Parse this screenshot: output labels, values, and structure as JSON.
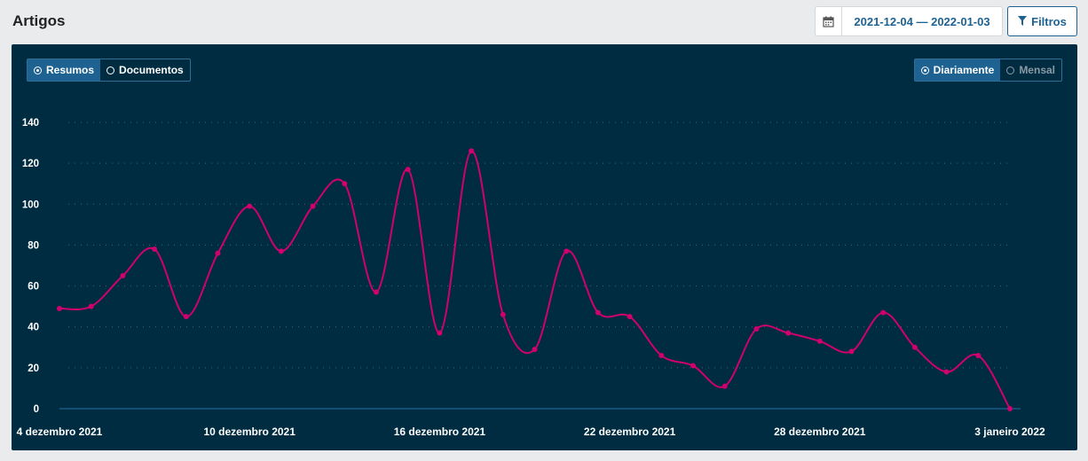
{
  "header": {
    "title": "Artigos",
    "date_range": "2021-12-04 — 2022-01-03",
    "filter_label": "Filtros",
    "calendar_icon": "calendar-icon",
    "filter_icon": "filter-icon"
  },
  "toggles": {
    "metric": [
      {
        "label": "Resumos",
        "active": true
      },
      {
        "label": "Documentos",
        "active": false
      }
    ],
    "period": [
      {
        "label": "Diariamente",
        "active": true
      },
      {
        "label": "Mensal",
        "active": false
      }
    ]
  },
  "colors": {
    "panel_bg": "#002c41",
    "line": "#d1006f",
    "accent": "#1e6292"
  },
  "chart_data": {
    "type": "line",
    "title": "",
    "xlabel": "",
    "ylabel": "",
    "ylim": [
      0,
      140
    ],
    "yticks": [
      0,
      20,
      40,
      60,
      80,
      100,
      120,
      140
    ],
    "grid": true,
    "x_tick_labels": [
      "4 dezembro 2021",
      "10 dezembro 2021",
      "16 dezembro 2021",
      "22 dezembro 2021",
      "28 dezembro 2021",
      "3 janeiro 2022"
    ],
    "x_tick_indices": [
      0,
      6,
      12,
      18,
      24,
      30
    ],
    "x": [
      "2021-12-04",
      "2021-12-05",
      "2021-12-06",
      "2021-12-07",
      "2021-12-08",
      "2021-12-09",
      "2021-12-10",
      "2021-12-11",
      "2021-12-12",
      "2021-12-13",
      "2021-12-14",
      "2021-12-15",
      "2021-12-16",
      "2021-12-17",
      "2021-12-18",
      "2021-12-19",
      "2021-12-20",
      "2021-12-21",
      "2021-12-22",
      "2021-12-23",
      "2021-12-24",
      "2021-12-25",
      "2021-12-26",
      "2021-12-27",
      "2021-12-28",
      "2021-12-29",
      "2021-12-30",
      "2021-12-31",
      "2022-01-01",
      "2022-01-02",
      "2022-01-03"
    ],
    "values": [
      49,
      50,
      65,
      78,
      45,
      76,
      99,
      77,
      99,
      110,
      57,
      117,
      37,
      126,
      46,
      29,
      77,
      47,
      45,
      26,
      21,
      11,
      39,
      37,
      33,
      28,
      47,
      30,
      18,
      26,
      0
    ]
  }
}
